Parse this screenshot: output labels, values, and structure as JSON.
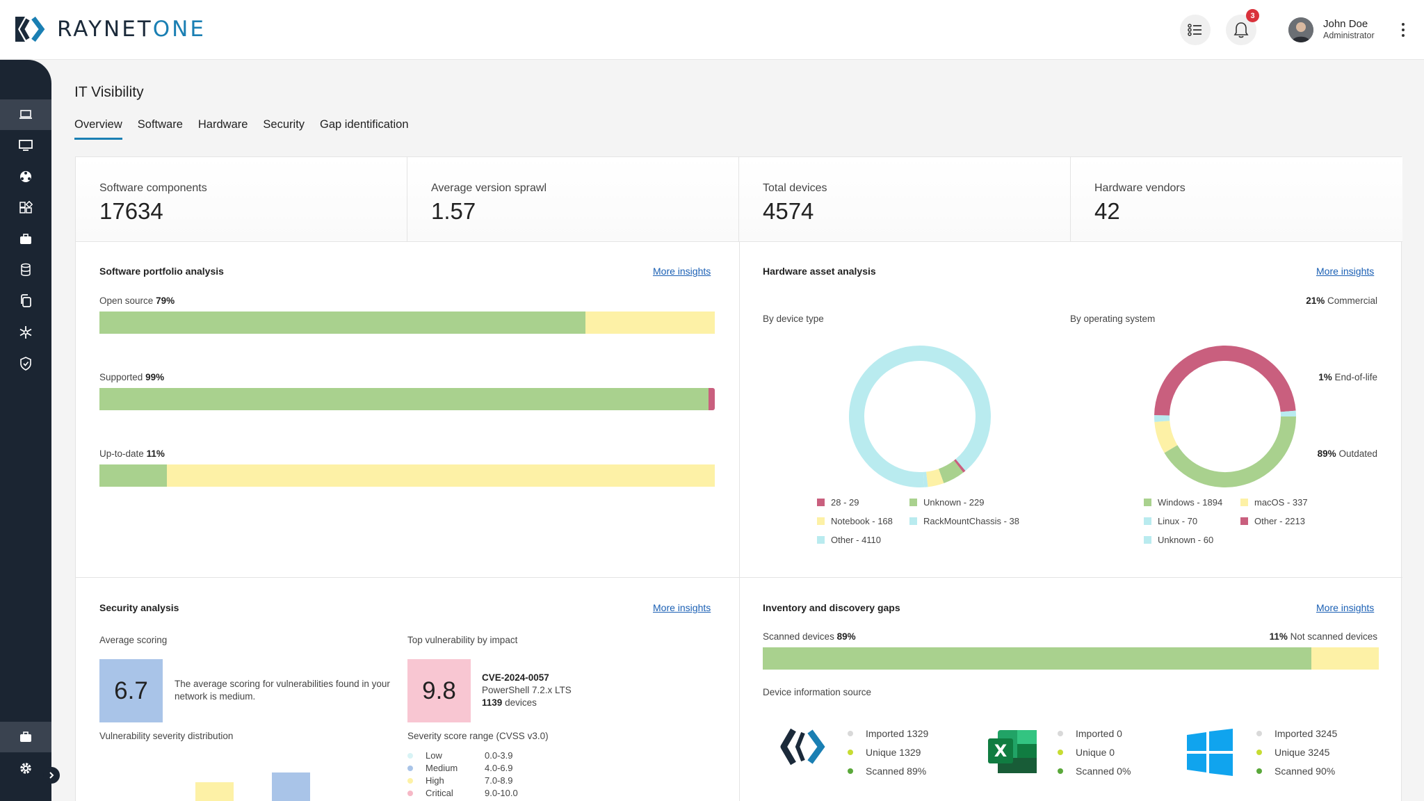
{
  "brand": {
    "name_main": "RAYNET",
    "name_accent": "ONE"
  },
  "header": {
    "notification_count": "3",
    "user_name": "John Doe",
    "user_role": "Administrator"
  },
  "sidebar": {
    "items": [
      {
        "icon": "laptop-icon",
        "active": true
      },
      {
        "icon": "monitor-icon"
      },
      {
        "icon": "network-icon"
      },
      {
        "icon": "apps-icon"
      },
      {
        "icon": "briefcase-icon"
      },
      {
        "icon": "database-icon"
      },
      {
        "icon": "copy-icon"
      },
      {
        "icon": "snowflake-icon"
      },
      {
        "icon": "shield-icon"
      }
    ],
    "bottom": [
      {
        "icon": "briefcase-icon",
        "active": true
      },
      {
        "icon": "gear-icon"
      }
    ]
  },
  "page": {
    "title": "IT Visibility",
    "tabs": [
      "Overview",
      "Software",
      "Hardware",
      "Security",
      "Gap identification"
    ]
  },
  "stats": [
    {
      "label": "Software components",
      "value": "17634"
    },
    {
      "label": "Average version sprawl",
      "value": "1.57"
    },
    {
      "label": "Total devices",
      "value": "4574"
    },
    {
      "label": "Hardware vendors",
      "value": "42"
    }
  ],
  "software": {
    "title": "Software portfolio analysis",
    "more": "More insights",
    "bars": [
      {
        "left_label": "Open source",
        "left_pct": "79%",
        "right_pct": "21%",
        "right_label": "Commercial",
        "value": 79,
        "left_color": "#a9d18e",
        "right_color": "#fdf1a6"
      },
      {
        "left_label": "Supported",
        "left_pct": "99%",
        "right_pct": "1%",
        "right_label": "End-of-life",
        "value": 99,
        "left_color": "#a9d18e",
        "right_color": "#c95f7e"
      },
      {
        "left_label": "Up-to-date",
        "left_pct": "11%",
        "right_pct": "89%",
        "right_label": "Outdated",
        "value": 11,
        "left_color": "#a9d18e",
        "right_color": "#fdf1a6"
      }
    ]
  },
  "hardware": {
    "title": "Hardware asset analysis",
    "more": "More insights",
    "device_type_label": "By device type",
    "os_label": "By operating system",
    "device_legend": [
      "28 - 29",
      "Unknown - 229",
      "Notebook - 168",
      "RackMountChassis - 38",
      "Other - 4110"
    ],
    "os_legend": [
      "Windows - 1894",
      "macOS - 337",
      "Linux - 70",
      "Other - 2213",
      "Unknown - 60"
    ]
  },
  "chart_data": [
    {
      "type": "pie",
      "title": "By device type",
      "labels": [
        "28 - 29",
        "Unknown",
        "Notebook",
        "RackMountChassis",
        "Other"
      ],
      "values": [
        29,
        229,
        168,
        38,
        4110
      ],
      "colors": [
        "#c95f7e",
        "#a9d18e",
        "#fdf1a6",
        "#b9ebef",
        "#b9ebef"
      ]
    },
    {
      "type": "pie",
      "title": "By operating system",
      "labels": [
        "Windows",
        "macOS",
        "Linux",
        "Other",
        "Unknown"
      ],
      "values": [
        1894,
        337,
        70,
        2213,
        60
      ],
      "colors": [
        "#a9d18e",
        "#fdf1a6",
        "#b9ebef",
        "#c95f7e",
        "#b9ebef"
      ]
    }
  ],
  "security": {
    "title": "Security analysis",
    "more": "More insights",
    "avg_label": "Average scoring",
    "avg_value": "6.7",
    "avg_text": "The average scoring for vulnerabilities found in your network is medium.",
    "top_label": "Top vulnerability by impact",
    "top_value": "9.8",
    "cve": "CVE-2024-0057",
    "product": "PowerShell 7.2.x LTS",
    "devices_count": "1139",
    "devices_word": "devices",
    "dist_label": "Vulnerability severity distribution",
    "range_label": "Severity score range (CVSS v3.0)",
    "ranges": [
      {
        "name": "Low",
        "range": "0.0-3.9",
        "color": "#d8f3f5"
      },
      {
        "name": "Medium",
        "range": "4.0-6.9",
        "color": "#a9c4e8"
      },
      {
        "name": "High",
        "range": "7.0-8.9",
        "color": "#fdf1a6"
      },
      {
        "name": "Critical",
        "range": "9.0-10.0",
        "color": "#f6b8c6"
      }
    ]
  },
  "gaps": {
    "title": "Inventory and discovery gaps",
    "more": "More insights",
    "left_label": "Scanned devices",
    "left_pct": "89%",
    "right_pct": "11%",
    "right_label": "Not scanned devices",
    "value": 89,
    "source_label": "Device information source",
    "sources": [
      {
        "icon": "raynet-logo-icon",
        "imported": "Imported 1329",
        "unique": "Unique 1329",
        "scanned": "Scanned 89%"
      },
      {
        "icon": "excel-icon",
        "imported": "Imported 0",
        "unique": "Unique 0",
        "scanned": "Scanned 0%"
      },
      {
        "icon": "windows-icon",
        "imported": "Imported 3245",
        "unique": "Unique 3245",
        "scanned": "Scanned 90%"
      }
    ]
  }
}
